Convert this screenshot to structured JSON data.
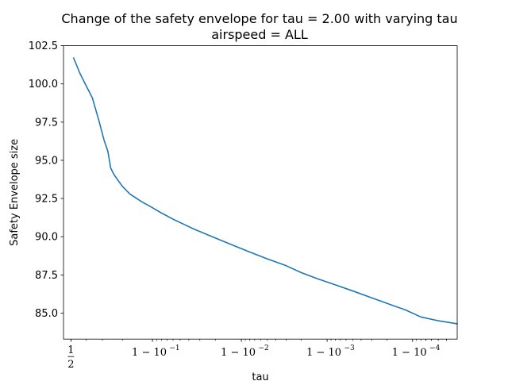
{
  "chart_data": {
    "type": "line",
    "title_line1": "Change of the safety envelope for tau = 2.00 with varying tau",
    "title_line2": "airspeed = ALL",
    "xlabel": "tau",
    "ylabel": "Safety Envelope size",
    "x_scale": "logit",
    "xlim": [
      0.45,
      0.99997
    ],
    "ylim": [
      83.3,
      102.5
    ],
    "y_ticks": [
      85.0,
      87.5,
      90.0,
      92.5,
      95.0,
      97.5,
      100.0,
      102.5
    ],
    "y_tick_labels": [
      "85.0",
      "87.5",
      "90.0",
      "92.5",
      "95.0",
      "97.5",
      "100.0",
      "102.5"
    ],
    "x_ticks": [
      {
        "value": 0.5,
        "label_num": "1",
        "label_den": "2"
      },
      {
        "value": 0.9,
        "label": "1 − 10",
        "exp": "−1"
      },
      {
        "value": 0.99,
        "label": "1 − 10",
        "exp": "−2"
      },
      {
        "value": 0.999,
        "label": "1 − 10",
        "exp": "−3"
      },
      {
        "value": 0.9999,
        "label": "1 − 10",
        "exp": "−4"
      }
    ],
    "color": "#1f77b4",
    "series": [
      {
        "x": [
          0.518,
          0.56,
          0.6,
          0.64,
          0.68,
          0.71,
          0.73,
          0.745,
          0.76,
          0.78,
          0.8,
          0.83,
          0.87,
          0.9,
          0.92,
          0.94,
          0.955,
          0.965,
          0.975,
          0.983,
          0.988,
          0.992,
          0.995,
          0.997,
          0.998,
          0.9987,
          0.9992,
          0.9995,
          0.9997,
          0.99982,
          0.99988,
          0.99992,
          0.99995,
          0.99997
        ],
        "y": [
          101.7,
          100.7,
          99.9,
          99.1,
          97.6,
          96.3,
          95.6,
          94.5,
          94.1,
          93.7,
          93.3,
          92.8,
          92.3,
          91.9,
          91.55,
          91.15,
          90.8,
          90.5,
          90.15,
          89.75,
          89.4,
          89.0,
          88.55,
          88.1,
          87.65,
          87.25,
          86.85,
          86.45,
          86.0,
          85.55,
          85.2,
          84.75,
          84.5,
          84.3
        ]
      }
    ]
  }
}
